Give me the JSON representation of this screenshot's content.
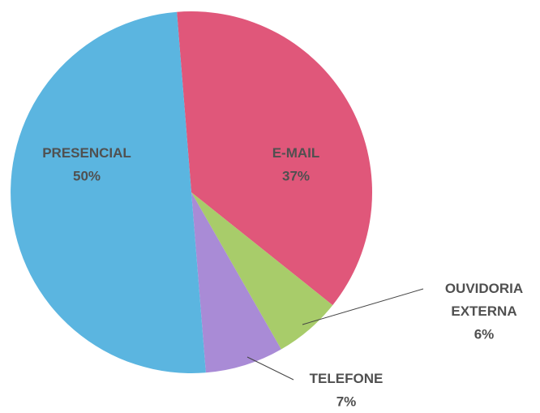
{
  "chart_data": {
    "type": "pie",
    "categories": [
      "E-MAIL",
      "OUVIDORIA EXTERNA",
      "TELEFONE",
      "PRESENCIAL"
    ],
    "values": [
      37,
      6,
      7,
      50
    ],
    "value_labels": [
      "37%",
      "6%",
      "7%",
      "50%"
    ],
    "colors": [
      "#e0577a",
      "#a8cc6a",
      "#a98bd6",
      "#5bb5e0"
    ]
  }
}
